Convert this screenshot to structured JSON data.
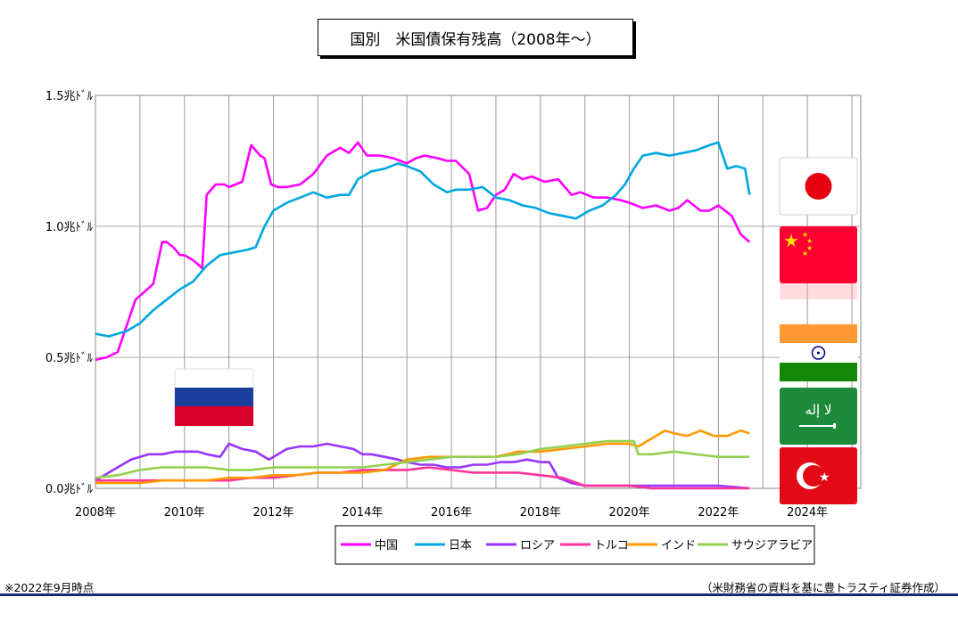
{
  "title": "国別　米国債保有残高（2008年～）",
  "note_left": "※2022年9月時点",
  "note_right": "（米財務省の資料を基に豊トラスティ証券作成）",
  "chart_data": {
    "type": "line",
    "title": "国別　米国債保有残高（2008年～）",
    "x_unit": "year",
    "xlim": [
      2008,
      2025.2
    ],
    "x_ticks": [
      2008,
      2010,
      2012,
      2014,
      2016,
      2018,
      2020,
      2022,
      2024
    ],
    "x_tick_labels": [
      "2008年",
      "2010年",
      "2012年",
      "2014年",
      "2016年",
      "2018年",
      "2020年",
      "2022年",
      "2024年"
    ],
    "ylim": [
      0,
      1.5
    ],
    "y_ticks": [
      0,
      0.5,
      1.0,
      1.5
    ],
    "y_tick_labels": [
      "0.0兆ﾄﾞﾙ",
      "0.5兆ﾄﾞﾙ",
      "1.0兆ﾄﾞﾙ",
      "1.5兆ﾄﾞﾙ"
    ],
    "grid": true,
    "legend_position": "bottom",
    "series": [
      {
        "name": "中国",
        "color": "#ff00ff",
        "x": [
          2008.0,
          2008.25,
          2008.5,
          2008.7,
          2008.9,
          2009.1,
          2009.3,
          2009.5,
          2009.6,
          2009.75,
          2009.9,
          2010.0,
          2010.2,
          2010.4,
          2010.5,
          2010.7,
          2010.9,
          2011.0,
          2011.3,
          2011.5,
          2011.7,
          2011.8,
          2011.95,
          2012.1,
          2012.3,
          2012.6,
          2012.9,
          2013.2,
          2013.5,
          2013.7,
          2013.9,
          2014.1,
          2014.4,
          2014.7,
          2015.0,
          2015.2,
          2015.4,
          2015.7,
          2015.9,
          2016.1,
          2016.4,
          2016.6,
          2016.8,
          2017.0,
          2017.2,
          2017.4,
          2017.6,
          2017.8,
          2018.1,
          2018.4,
          2018.7,
          2018.9,
          2019.2,
          2019.5,
          2019.8,
          2020.0,
          2020.3,
          2020.6,
          2020.9,
          2021.1,
          2021.3,
          2021.6,
          2021.8,
          2022.0,
          2022.3,
          2022.5,
          2022.7
        ],
        "y": [
          0.49,
          0.5,
          0.52,
          0.62,
          0.72,
          0.75,
          0.78,
          0.94,
          0.94,
          0.92,
          0.89,
          0.89,
          0.87,
          0.84,
          1.12,
          1.16,
          1.16,
          1.15,
          1.17,
          1.31,
          1.27,
          1.26,
          1.16,
          1.15,
          1.15,
          1.16,
          1.2,
          1.27,
          1.3,
          1.28,
          1.32,
          1.27,
          1.27,
          1.26,
          1.24,
          1.26,
          1.27,
          1.26,
          1.25,
          1.25,
          1.2,
          1.06,
          1.07,
          1.12,
          1.14,
          1.2,
          1.18,
          1.19,
          1.17,
          1.18,
          1.12,
          1.13,
          1.11,
          1.11,
          1.1,
          1.09,
          1.07,
          1.08,
          1.06,
          1.07,
          1.1,
          1.06,
          1.06,
          1.08,
          1.04,
          0.97,
          0.94
        ]
      },
      {
        "name": "日本",
        "color": "#00a6e0",
        "x": [
          2008.0,
          2008.3,
          2008.5,
          2008.7,
          2009.0,
          2009.3,
          2009.6,
          2009.9,
          2010.2,
          2010.5,
          2010.8,
          2011.1,
          2011.4,
          2011.6,
          2011.8,
          2012.0,
          2012.3,
          2012.6,
          2012.9,
          2013.2,
          2013.5,
          2013.7,
          2013.9,
          2014.2,
          2014.5,
          2014.8,
          2015.0,
          2015.3,
          2015.6,
          2015.9,
          2016.1,
          2016.4,
          2016.7,
          2017.0,
          2017.3,
          2017.6,
          2017.9,
          2018.2,
          2018.5,
          2018.8,
          2019.1,
          2019.4,
          2019.7,
          2019.9,
          2020.1,
          2020.3,
          2020.6,
          2020.9,
          2021.2,
          2021.5,
          2021.8,
          2022.0,
          2022.2,
          2022.4,
          2022.6,
          2022.7
        ],
        "y": [
          0.59,
          0.58,
          0.59,
          0.6,
          0.63,
          0.68,
          0.72,
          0.76,
          0.79,
          0.85,
          0.89,
          0.9,
          0.91,
          0.92,
          1.0,
          1.06,
          1.09,
          1.11,
          1.13,
          1.11,
          1.12,
          1.12,
          1.18,
          1.21,
          1.22,
          1.24,
          1.23,
          1.21,
          1.16,
          1.13,
          1.14,
          1.14,
          1.15,
          1.11,
          1.1,
          1.08,
          1.07,
          1.05,
          1.04,
          1.03,
          1.06,
          1.08,
          1.12,
          1.16,
          1.22,
          1.27,
          1.28,
          1.27,
          1.28,
          1.29,
          1.31,
          1.32,
          1.22,
          1.23,
          1.22,
          1.12
        ]
      },
      {
        "name": "ロシア",
        "color": "#9933ff",
        "x": [
          2008.0,
          2008.4,
          2008.8,
          2009.2,
          2009.5,
          2009.8,
          2010.0,
          2010.3,
          2010.5,
          2010.8,
          2011.0,
          2011.3,
          2011.6,
          2011.9,
          2012.3,
          2012.6,
          2012.9,
          2013.2,
          2013.5,
          2013.8,
          2014.0,
          2014.2,
          2014.5,
          2014.8,
          2015.0,
          2015.3,
          2015.6,
          2015.9,
          2016.2,
          2016.5,
          2016.8,
          2017.1,
          2017.4,
          2017.7,
          2018.0,
          2018.2,
          2018.4,
          2018.7,
          2019.0,
          2019.5,
          2020.0,
          2020.5,
          2021.0,
          2021.5,
          2022.0,
          2022.7
        ],
        "y": [
          0.03,
          0.07,
          0.11,
          0.13,
          0.13,
          0.14,
          0.14,
          0.14,
          0.13,
          0.12,
          0.17,
          0.15,
          0.14,
          0.11,
          0.15,
          0.16,
          0.16,
          0.17,
          0.16,
          0.15,
          0.13,
          0.13,
          0.12,
          0.11,
          0.1,
          0.09,
          0.09,
          0.08,
          0.08,
          0.09,
          0.09,
          0.1,
          0.1,
          0.11,
          0.1,
          0.1,
          0.04,
          0.02,
          0.01,
          0.01,
          0.01,
          0.01,
          0.01,
          0.01,
          0.01,
          0.0
        ]
      },
      {
        "name": "トルコ",
        "color": "#ff3399",
        "x": [
          2008.0,
          2008.5,
          2009.0,
          2009.5,
          2010.0,
          2010.5,
          2011.0,
          2011.5,
          2012.0,
          2012.5,
          2013.0,
          2013.5,
          2014.0,
          2014.5,
          2015.0,
          2015.5,
          2016.0,
          2016.5,
          2017.0,
          2017.5,
          2018.0,
          2018.5,
          2019.0,
          2019.5,
          2020.0,
          2020.5,
          2021.0,
          2021.5,
          2022.0,
          2022.7
        ],
        "y": [
          0.03,
          0.03,
          0.03,
          0.03,
          0.03,
          0.03,
          0.03,
          0.04,
          0.04,
          0.05,
          0.06,
          0.06,
          0.07,
          0.07,
          0.07,
          0.08,
          0.07,
          0.06,
          0.06,
          0.06,
          0.05,
          0.04,
          0.01,
          0.01,
          0.01,
          0.0,
          0.0,
          0.0,
          0.0,
          0.0
        ]
      },
      {
        "name": "インド",
        "color": "#ff9900",
        "x": [
          2008.0,
          2008.5,
          2009.0,
          2009.5,
          2010.0,
          2010.5,
          2011.0,
          2011.5,
          2012.0,
          2012.5,
          2013.0,
          2013.5,
          2014.0,
          2014.5,
          2015.0,
          2015.5,
          2016.0,
          2016.5,
          2017.0,
          2017.5,
          2018.0,
          2018.5,
          2019.0,
          2019.5,
          2020.0,
          2020.2,
          2020.5,
          2020.8,
          2021.0,
          2021.3,
          2021.6,
          2021.9,
          2022.2,
          2022.5,
          2022.7
        ],
        "y": [
          0.02,
          0.02,
          0.02,
          0.03,
          0.03,
          0.03,
          0.04,
          0.04,
          0.05,
          0.05,
          0.06,
          0.06,
          0.06,
          0.07,
          0.11,
          0.12,
          0.12,
          0.12,
          0.12,
          0.14,
          0.14,
          0.15,
          0.16,
          0.17,
          0.17,
          0.16,
          0.19,
          0.22,
          0.21,
          0.2,
          0.22,
          0.2,
          0.2,
          0.22,
          0.21
        ]
      },
      {
        "name": "サウジアラビア",
        "color": "#92d050",
        "x": [
          2008.0,
          2008.5,
          2009.0,
          2009.5,
          2010.0,
          2010.5,
          2011.0,
          2011.5,
          2012.0,
          2012.5,
          2013.0,
          2013.5,
          2014.0,
          2014.5,
          2015.0,
          2015.5,
          2016.0,
          2016.5,
          2017.0,
          2017.5,
          2018.0,
          2018.5,
          2019.0,
          2019.5,
          2019.8,
          2020.1,
          2020.2,
          2020.5,
          2021.0,
          2021.5,
          2022.0,
          2022.7
        ],
        "y": [
          0.04,
          0.05,
          0.07,
          0.08,
          0.08,
          0.08,
          0.07,
          0.07,
          0.08,
          0.08,
          0.08,
          0.08,
          0.08,
          0.09,
          0.1,
          0.11,
          0.12,
          0.12,
          0.12,
          0.13,
          0.15,
          0.16,
          0.17,
          0.18,
          0.18,
          0.18,
          0.13,
          0.13,
          0.14,
          0.13,
          0.12,
          0.12
        ]
      }
    ],
    "flags": [
      {
        "country": "ロシア",
        "icon": "russia-flag-icon"
      },
      {
        "country": "日本",
        "icon": "japan-flag-icon"
      },
      {
        "country": "中国",
        "icon": "china-flag-icon"
      },
      {
        "country": "インド",
        "icon": "india-flag-icon"
      },
      {
        "country": "サウジアラビア",
        "icon": "saudi-arabia-flag-icon"
      },
      {
        "country": "トルコ",
        "icon": "turkey-flag-icon"
      }
    ]
  }
}
